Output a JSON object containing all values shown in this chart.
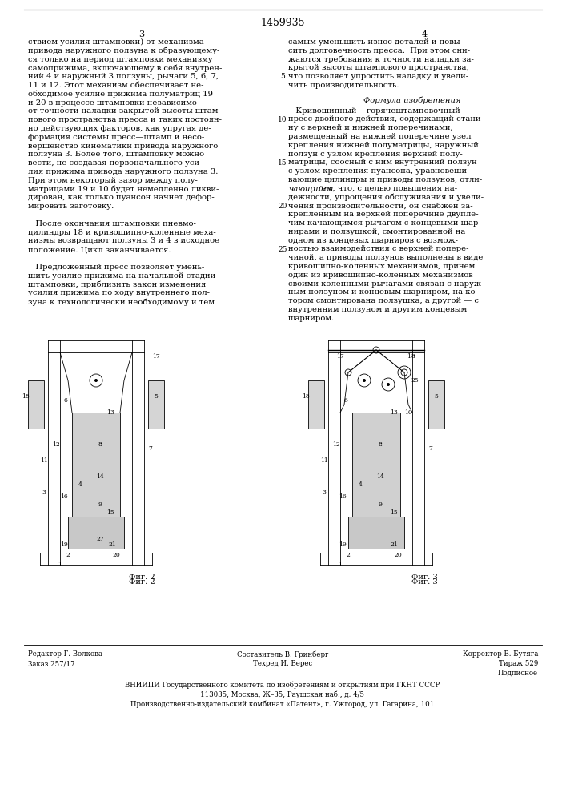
{
  "page_number": "1459935",
  "col_left_num": "3",
  "col_right_num": "4",
  "background_color": "#ffffff",
  "text_color": "#000000",
  "font_size_body": 7.2,
  "font_size_small": 6.2,
  "font_size_page_num": 9,
  "font_size_col_num": 8,
  "left_col_text": [
    "ствием усилия штамповки) от механизма",
    "привода наружного ползуна к образующему-",
    "ся только на период штамповки механизму",
    "самоприжима, включающему в себя внутрен-",
    "ний 4 и наружный 3 ползуны, рычаги 5, 6, 7,",
    "11 и 12. Этот механизм обеспечивает не-",
    "обходимое усилие прижима полуматриц 19",
    "и 20 в процессе штамповки независимо",
    "от точности наладки закрытой высоты штам-",
    "пового пространства пресса и таких постоян-",
    "но действующих факторов, как упругая де-",
    "формация системы пресс—штамп и несо-",
    "вершенство кинематики привода наружного",
    "ползуна 3. Более того, штамповку можно",
    "вести, не создавая первоначального уси-",
    "лия прижима привода наружного ползуна 3.",
    "При этом некоторый зазор между полу-",
    "матрицами 19 и 10 будет немедленно ликви-",
    "дирован, как только пуансон начнет дефор-",
    "мировать заготовку.",
    "",
    "   После окончания штамповки пневмо-",
    "цилиндры 18 и кривошипно-коленные меха-",
    "низмы возвращают ползуны 3 и 4 в исходное",
    "положение. Цикл заканчивается.",
    "",
    "   Предложенный пресс позволяет умень-",
    "шить усилие прижима на начальной стадии",
    "штамповки, приблизить закон изменения",
    "усилия прижима по ходу внутреннего пол-",
    "зуна к технологически необходимому и тем"
  ],
  "right_col_line5": "5",
  "right_col_line10": "10",
  "right_col_line15": "15",
  "right_col_line20": "20",
  "right_col_line25": "25",
  "right_col_text_top": [
    "самым уменьшить износ деталей и повы-",
    "сить долговечность пресса.  При этом сни-",
    "жаются требования к точности наладки за-",
    "крытой высоты штампового пространства,",
    "что позволяет упростить наладку и увели-",
    "чить производительность."
  ],
  "formula_header": "Формула изобретения",
  "formula_text": [
    "   Кривошипный    горячештамповочный",
    "пресс двойного действия, содержащий стани-",
    "ну с верхней и нижней поперечинами,",
    "размещенный на нижней поперечине узел",
    "крепления нижней полуматрицы, наружный",
    "ползун с узлом крепления верхней полу-",
    "матрицы, соосный с ним внутренний ползун",
    "с узлом крепления пуансона, уравновеши-",
    "вающие цилиндры и приводы ползунов, отли-",
    "чающийся тем, что, с целью повышения на-",
    "дежности, упрощения обслуживания и увели-",
    "чения производительности, он снабжен за-",
    "крепленным на верхней поперечине двупле-",
    "чим качающимся рычагом с концевыми шар-",
    "нирами и ползушкой, смонтированной на",
    "одном из концевых шарниров с возмож-",
    "ностью взаимодействия с верхней попере-",
    "чиной, а приводы ползунов выполнены в виде",
    "кривошипно-коленных механизмов, причем",
    "один из кривошипно-коленных механизмов",
    "своими коленными рычагами связан с наруж-",
    "ным ползуном и концевым шарниром, на ко-",
    "тором смонтирована ползушка, а другой — с",
    "внутренним ползуном и другим концевым",
    "шарниром."
  ],
  "fig2_label": "Фиг. 2",
  "fig3_label": "Фиг. 3",
  "footer_composer": "Составитель В. Гринберг",
  "footer_editor": "Редактор Г. Волкова",
  "footer_techred": "Техред И. Верес",
  "footer_corrector": "Корректор В. Бутяга",
  "footer_order": "Заказ 257/17",
  "footer_tirazh": "Тираж 529",
  "footer_podpisnoye": "Подписное",
  "footer_vniipii": "ВНИИПИ Государственного комитета по изобретениям и открытиям при ГКНТ СССР",
  "footer_address": "113035, Москва, Ж–35, Раушская наб., д. 4/5",
  "footer_factory": "Производственно-издательский комбинат «Патент», г. Ужгород, ул. Гагарина, 101",
  "separator_color": "#000000",
  "italic_formula_parts": [
    "отли-",
    "чающийся"
  ]
}
